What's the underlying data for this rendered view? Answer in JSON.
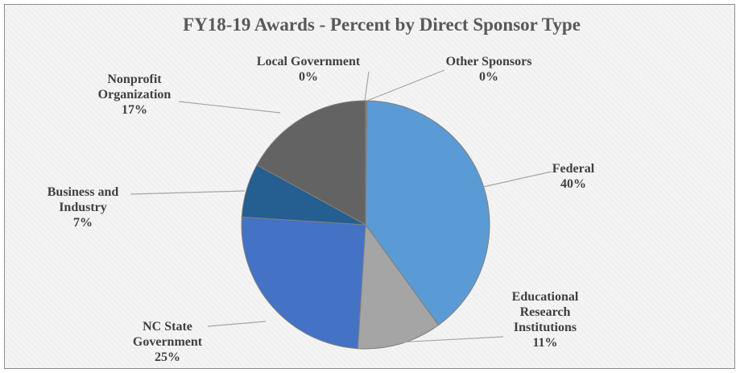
{
  "chart_data": {
    "type": "pie",
    "title": "FY18-19 Awards - Percent by Direct Sponsor Type",
    "slices": [
      {
        "label": "Federal",
        "value": 40,
        "display": "40%",
        "color": "#5b9bd5"
      },
      {
        "label": "Educational Research Institutions",
        "value": 11,
        "display": "11%",
        "color": "#a5a5a5"
      },
      {
        "label": "NC State Government",
        "value": 25,
        "display": "25%",
        "color": "#4472c4"
      },
      {
        "label": "Business and Industry",
        "value": 7,
        "display": "7%",
        "color": "#255e91"
      },
      {
        "label": "Nonprofit Organization",
        "value": 17,
        "display": "17%",
        "color": "#636363"
      },
      {
        "label": "Local Government",
        "value": 0,
        "display": "0%",
        "color": "#264478"
      },
      {
        "label": "Other Sponsors",
        "value": 0,
        "display": "0%",
        "color": "#9e480e"
      }
    ],
    "legend": "none"
  }
}
